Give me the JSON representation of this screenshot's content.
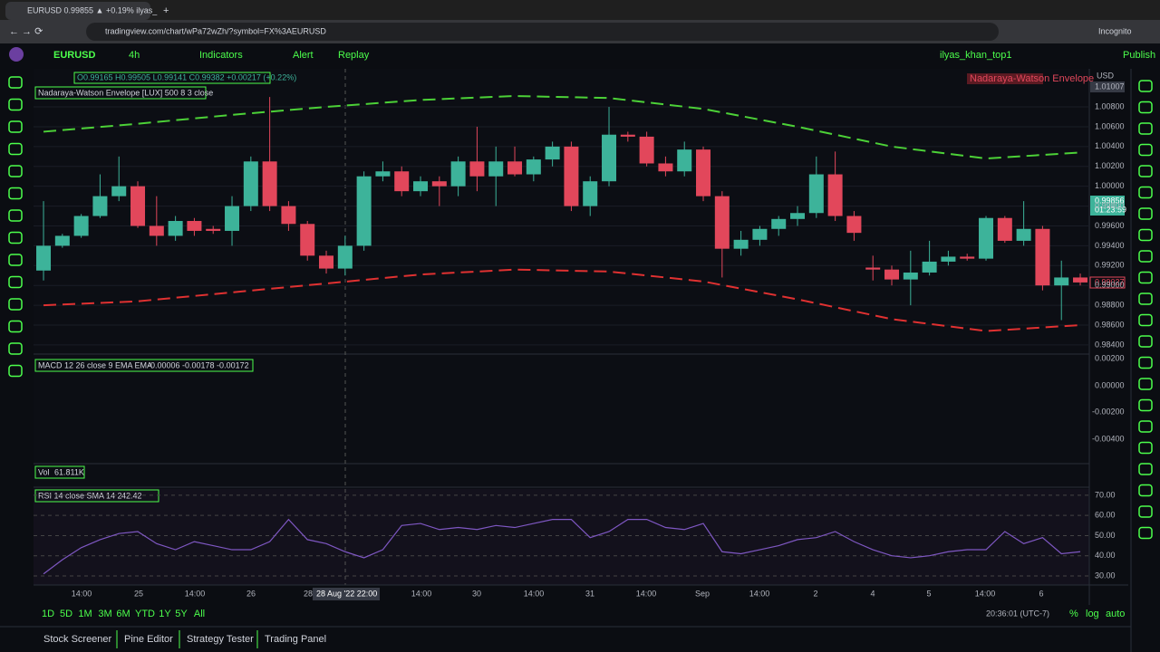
{
  "browser": {
    "tab_title": "EURUSD 0.99855 ▲ +0.19% ilyas_",
    "url": "tradingview.com/chart/wPa72wZh/?symbol=FX%3AEURUSD",
    "profile": "Incognito"
  },
  "toolbar": {
    "symbol": "EURUSD",
    "interval": "4h",
    "indicators": "Indicators",
    "alert": "Alert",
    "replay": "Replay",
    "layout_name": "ilyas_khan_top1",
    "publish": "Publish"
  },
  "legend": {
    "ohlc": "O0.99165 H0.99505 L0.99141 C0.99382 +0.00217 (+0.22%)",
    "envelope": "Nadaraya-Watson Envelope [LUX] 500 8 3 close",
    "envelope_tag": "Nadaraya-Watson Envelope",
    "macd": "MACD 12 26 close 9 EMA EMA",
    "macd_values": "-0.00006 -0.00178 -0.00172",
    "volume": "Vol",
    "volume_value": "61.811K",
    "rsi": "RSI 14 close SMA 14 2",
    "rsi_value": "42.42"
  },
  "price_axis": {
    "currency": "USD",
    "high_tag": "1.01007",
    "last_price": "0.99856",
    "countdown": "01:23:59",
    "low_tag": "0.99027",
    "macd_ticks": [
      "0.00200",
      "0.00000",
      "-0.00200",
      "-0.00400"
    ]
  },
  "time_axis": {
    "labels": [
      "14:00",
      "25",
      "14:00",
      "26",
      "28",
      "14:00",
      "30",
      "14:00",
      "31",
      "14:00",
      "Sep",
      "14:00",
      "2",
      "4",
      "5",
      "14:00",
      "6"
    ],
    "crosshair": "28 Aug '22   22:00"
  },
  "bottom": {
    "ranges": [
      "1D",
      "5D",
      "1M",
      "3M",
      "6M",
      "YTD",
      "1Y",
      "5Y",
      "All"
    ],
    "clock": "20:36:01 (UTC-7)",
    "percent": "%",
    "log": "log",
    "auto": "auto",
    "tabs": [
      "Stock Screener",
      "Pine Editor",
      "Strategy Tester",
      "Trading Panel"
    ]
  },
  "chart_data": [
    {
      "type": "candlestick",
      "up_color": "#3db39a",
      "down_color": "#e2475b",
      "xlim": [
        -0.53,
        55.48
      ],
      "ylim": [
        0.98317,
        1.01184
      ],
      "yticks": [
        {
          "value": 1.008,
          "label": "1.00800"
        },
        {
          "value": 1.006,
          "label": "1.00600"
        },
        {
          "value": 1.004,
          "label": "1.00400"
        },
        {
          "value": 1.002,
          "label": "1.00200"
        },
        {
          "value": 1.0,
          "label": "1.00000"
        },
        {
          "value": 0.998,
          "label": "0.99800"
        },
        {
          "value": 0.996,
          "label": "0.99600"
        },
        {
          "value": 0.994,
          "label": "0.99400"
        },
        {
          "value": 0.992,
          "label": "0.99200"
        },
        {
          "value": 0.99,
          "label": "0.99000"
        },
        {
          "value": 0.988,
          "label": "0.98800"
        },
        {
          "value": 0.986,
          "label": "0.98600"
        },
        {
          "value": 0.984,
          "label": "0.98400"
        }
      ],
      "open": [
        0.9915,
        0.994,
        0.995,
        0.997,
        0.999,
        1.0,
        0.996,
        0.995,
        0.9965,
        0.9957,
        0.9955,
        0.998,
        1.0025,
        0.998,
        0.9962,
        0.993,
        0.9917,
        0.994,
        1.001,
        1.0015,
        0.9995,
        1.0005,
        1.0,
        1.0025,
        1.001,
        1.0025,
        1.0012,
        1.0027,
        1.004,
        0.998,
        1.0005,
        1.0052,
        1.005,
        1.0023,
        1.0015,
        1.0037,
        0.999,
        0.9937,
        0.9946,
        0.9957,
        0.9967,
        0.9973,
        1.0012,
        0.997,
        0.9918,
        0.9916,
        0.9906,
        0.9913,
        0.9924,
        0.9929,
        0.9927,
        0.9968,
        0.9945,
        0.9957,
        0.99,
        0.9908
      ],
      "high": [
        0.9985,
        0.9952,
        0.9972,
        1.0012,
        1.003,
        1.0005,
        0.999,
        0.997,
        0.9968,
        0.996,
        0.999,
        1.003,
        1.009,
        0.9985,
        0.9965,
        0.9935,
        0.995,
        1.0015,
        1.0025,
        1.002,
        1.001,
        1.001,
        1.003,
        1.006,
        1.004,
        1.004,
        1.003,
        1.0045,
        1.0045,
        1.001,
        1.008,
        1.0055,
        1.0055,
        1.003,
        1.0045,
        1.004,
        0.9995,
        0.9955,
        0.996,
        0.997,
        0.998,
        1.003,
        1.0035,
        0.9975,
        0.993,
        0.992,
        0.9935,
        0.9945,
        0.9935,
        0.9932,
        0.997,
        0.997,
        0.9985,
        0.996,
        0.9925,
        0.9912
      ],
      "low": [
        0.9905,
        0.9938,
        0.9948,
        0.9968,
        0.9985,
        0.9958,
        0.994,
        0.9945,
        0.995,
        0.9952,
        0.994,
        0.9975,
        0.9975,
        0.9955,
        0.9925,
        0.9912,
        0.991,
        0.9935,
        1.0005,
        0.999,
        0.999,
        0.998,
        0.999,
        0.9995,
        0.998,
        1.001,
        1.0005,
        1.002,
        0.9975,
        0.997,
        1.0,
        1.0045,
        1.002,
        1.001,
        1.001,
        0.9985,
        0.9908,
        0.993,
        0.994,
        0.995,
        0.996,
        0.9968,
        0.9965,
        0.9945,
        0.9905,
        0.99,
        0.988,
        0.991,
        0.992,
        0.9925,
        0.9925,
        0.9943,
        0.994,
        0.9895,
        0.9865,
        0.99
      ],
      "close": [
        0.994,
        0.995,
        0.997,
        0.999,
        1.0,
        0.996,
        0.995,
        0.9965,
        0.9955,
        0.9955,
        0.998,
        1.0025,
        0.998,
        0.9962,
        0.993,
        0.9917,
        0.994,
        1.001,
        1.0015,
        0.9995,
        1.0005,
        1.0,
        1.0025,
        1.001,
        1.0025,
        1.0012,
        1.0027,
        1.004,
        0.998,
        1.0005,
        1.0052,
        1.005,
        1.0023,
        1.0015,
        1.0037,
        0.999,
        0.9937,
        0.9946,
        0.9957,
        0.9967,
        0.9973,
        1.0012,
        0.997,
        0.9953,
        0.9916,
        0.9906,
        0.9913,
        0.9924,
        0.9929,
        0.9927,
        0.9968,
        0.9945,
        0.9957,
        0.99,
        0.9908,
        0.9903
      ],
      "series": [
        {
          "color": "#4cd137",
          "x": [
            0,
            5,
            10,
            15,
            20,
            25,
            30,
            35,
            40,
            45,
            50,
            55
          ],
          "values": [
            1.0055,
            1.0063,
            1.0072,
            1.008,
            1.0087,
            1.0091,
            1.0089,
            1.0078,
            1.006,
            1.004,
            1.0028,
            1.0034
          ]
        },
        {
          "color": "#e03131",
          "x": [
            0,
            5,
            10,
            15,
            20,
            25,
            30,
            35,
            40,
            45,
            50,
            55
          ],
          "values": [
            0.988,
            0.9884,
            0.9893,
            0.9902,
            0.9911,
            0.9916,
            0.9914,
            0.9904,
            0.9886,
            0.9866,
            0.9854,
            0.986
          ]
        }
      ]
    },
    {
      "type": "line",
      "color": "#7e57c2",
      "xlim": [
        -0.53,
        55.48
      ],
      "ylim": [
        25.5,
        73.1
      ],
      "yticks": [
        {
          "value": 70,
          "label": "70.00"
        },
        {
          "value": 60,
          "label": "60.00"
        },
        {
          "value": 50,
          "label": "50.00"
        },
        {
          "value": 40,
          "label": "40.00"
        },
        {
          "value": 30,
          "label": "30.00"
        }
      ],
      "values": [
        31,
        38,
        44,
        48,
        51,
        52,
        46,
        43,
        47,
        45,
        43,
        43,
        47,
        58,
        48,
        46,
        42,
        39,
        43,
        55,
        56,
        53,
        54,
        53,
        55,
        54,
        56,
        58,
        58,
        49,
        52,
        58,
        58,
        54,
        53,
        56,
        42,
        41,
        43,
        45,
        48,
        49,
        52,
        47,
        43,
        40,
        39,
        40,
        42,
        43,
        43,
        52,
        46,
        49,
        41,
        42
      ]
    }
  ]
}
